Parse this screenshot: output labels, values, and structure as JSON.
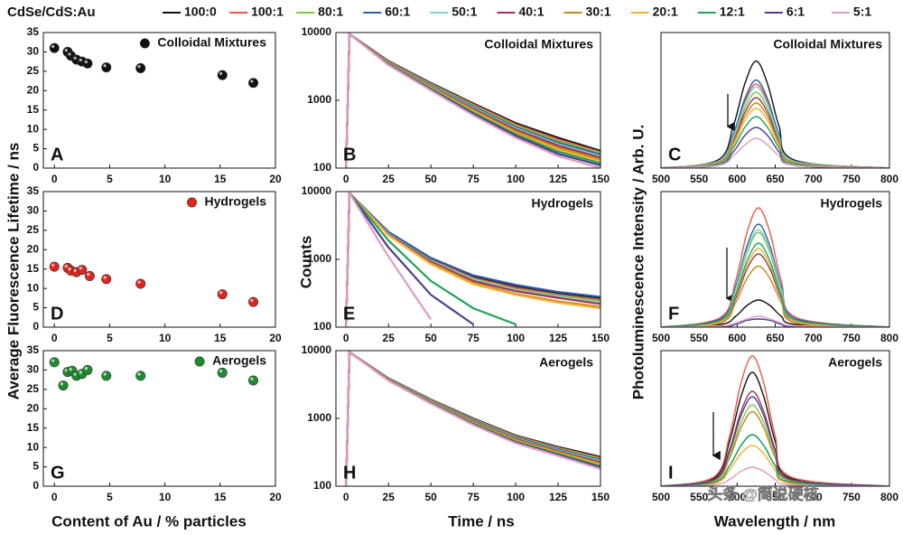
{
  "legend": {
    "title": "CdSe/CdS:Au",
    "entries": [
      {
        "name": "100:0",
        "color": "#111111"
      },
      {
        "name": "100:1",
        "color": "#e8584a"
      },
      {
        "name": "80:1",
        "color": "#7ac943"
      },
      {
        "name": "60:1",
        "color": "#2a5caa"
      },
      {
        "name": "50:1",
        "color": "#7fd3d8"
      },
      {
        "name": "40:1",
        "color": "#a0344e"
      },
      {
        "name": "30:1",
        "color": "#c8861e"
      },
      {
        "name": "20:1",
        "color": "#f2b134"
      },
      {
        "name": "12:1",
        "color": "#1fa35a"
      },
      {
        "name": "6:1",
        "color": "#4b3f8f"
      },
      {
        "name": "5:1",
        "color": "#e19ac2"
      }
    ]
  },
  "axis_labels": {
    "lifetime_y": "Average Fluorescence Lifetime / ns",
    "counts_y": "Counts",
    "pl_y": "Photoluminescence Intensity / Arb. U.",
    "lifetime_x": "Content of Au / % particles",
    "counts_x": "Time / ns",
    "pl_x": "Wavelength / nm"
  },
  "watermark": "头条 @简说硬核",
  "chart_data": [
    {
      "type": "scatter",
      "panel_label": "A",
      "xlim": [
        -1,
        20
      ],
      "ylim": [
        0,
        35
      ],
      "xticks": [
        0,
        5,
        10,
        15,
        20
      ],
      "yticks": [
        0,
        5,
        10,
        15,
        20,
        25,
        30,
        35
      ],
      "x": [
        0,
        1.2,
        1.5,
        2,
        2.5,
        3,
        4.7,
        7.8,
        15.2,
        18
      ],
      "series": [
        {
          "name": "Colloidal Mixtures",
          "color": "#111111",
          "values": [
            31,
            30,
            29,
            28,
            27.5,
            27,
            26,
            25.8,
            24,
            22
          ]
        }
      ]
    },
    {
      "type": "line",
      "panel_label": "B",
      "annotation": "Colloidal Mixtures",
      "ylog": true,
      "xlim": [
        -6,
        150
      ],
      "ylim": [
        100,
        10000
      ],
      "xticks": [
        0,
        25,
        50,
        75,
        100,
        125,
        150
      ],
      "yticks": [
        100,
        1000,
        10000
      ],
      "x": [
        0,
        2,
        25,
        50,
        75,
        100,
        125,
        150
      ],
      "series": [
        {
          "values": [
            100,
            9500,
            3800,
            1800,
            900,
            460,
            280,
            180
          ]
        },
        {
          "values": [
            100,
            9500,
            3750,
            1760,
            870,
            440,
            265,
            172
          ]
        },
        {
          "values": [
            100,
            9500,
            3700,
            1720,
            840,
            420,
            250,
            165
          ]
        },
        {
          "values": [
            100,
            9500,
            3650,
            1680,
            810,
            400,
            237,
            158
          ]
        },
        {
          "values": [
            100,
            9500,
            3600,
            1640,
            780,
            385,
            225,
            150
          ]
        },
        {
          "values": [
            100,
            9500,
            3550,
            1600,
            750,
            370,
            215,
            143
          ]
        },
        {
          "values": [
            100,
            9500,
            3500,
            1560,
            720,
            350,
            200,
            135
          ]
        },
        {
          "values": [
            100,
            9500,
            3450,
            1520,
            690,
            330,
            188,
            127
          ]
        },
        {
          "values": [
            100,
            9500,
            3400,
            1480,
            660,
            315,
            175,
            118
          ]
        },
        {
          "values": [
            100,
            9500,
            3350,
            1440,
            630,
            300,
            162,
            110
          ]
        },
        {
          "values": [
            100,
            9500,
            3300,
            1400,
            600,
            280,
            150,
            100
          ]
        }
      ]
    },
    {
      "type": "line",
      "panel_label": "C",
      "annotation": "Colloidal Mixtures",
      "xlim": [
        500,
        800
      ],
      "ylim": [
        0,
        100
      ],
      "xticks": [
        500,
        550,
        600,
        650,
        700,
        750,
        800
      ],
      "x": [
        500,
        575,
        595,
        610,
        625,
        640,
        655,
        675,
        800
      ],
      "series": [
        {
          "values": [
            0,
            6,
            31,
            62,
            79,
            62,
            31,
            6,
            0
          ]
        },
        {
          "values": [
            0,
            5,
            24,
            49,
            62,
            49,
            24,
            5,
            0
          ]
        },
        {
          "values": [
            0,
            4,
            22,
            44,
            56,
            44,
            22,
            4,
            0
          ]
        },
        {
          "values": [
            0,
            5,
            25,
            51,
            65,
            51,
            25,
            5,
            0
          ]
        },
        {
          "values": [
            0,
            5,
            23,
            47,
            60,
            47,
            23,
            5,
            0
          ]
        },
        {
          "values": [
            0,
            4,
            20,
            41,
            52,
            41,
            20,
            4,
            0
          ]
        },
        {
          "values": [
            0,
            4,
            19,
            38,
            48,
            38,
            19,
            4,
            0
          ]
        },
        {
          "values": [
            0,
            3,
            17,
            35,
            44,
            35,
            17,
            3,
            0
          ]
        },
        {
          "values": [
            0,
            3,
            15,
            30,
            38,
            30,
            15,
            3,
            0
          ]
        },
        {
          "values": [
            0,
            2,
            12,
            24,
            30,
            24,
            12,
            2,
            0
          ]
        },
        {
          "values": [
            0,
            2,
            9,
            17,
            22,
            17,
            9,
            2,
            0
          ]
        }
      ]
    },
    {
      "type": "scatter",
      "panel_label": "D",
      "xlim": [
        -1,
        20
      ],
      "ylim": [
        0,
        35
      ],
      "xticks": [
        0,
        5,
        10,
        15,
        20
      ],
      "yticks": [
        0,
        5,
        10,
        15,
        20,
        25,
        30,
        35
      ],
      "x": [
        0,
        1.2,
        1.5,
        2,
        2.5,
        3.2,
        4.7,
        7.8,
        15.2,
        18
      ],
      "series": [
        {
          "name": "Hydrogels",
          "color": "#e0251b",
          "values": [
            15.6,
            15.3,
            14.6,
            14.2,
            14.8,
            13.2,
            12.4,
            11.2,
            8.5,
            6.5
          ]
        }
      ]
    },
    {
      "type": "line",
      "panel_label": "E",
      "annotation": "Hydrogels",
      "ylog": true,
      "xlim": [
        -6,
        150
      ],
      "ylim": [
        100,
        10000
      ],
      "xticks": [
        0,
        25,
        50,
        75,
        100,
        125,
        150
      ],
      "yticks": [
        100,
        1000,
        10000
      ],
      "x": [
        0,
        2,
        25,
        50,
        75,
        100,
        125,
        150
      ],
      "series": [
        {
          "values": [
            100,
            9500,
            2500,
            1000,
            550,
            400,
            320,
            270
          ]
        },
        {
          "values": [
            100,
            9500,
            2450,
            980,
            530,
            380,
            300,
            250
          ]
        },
        {
          "values": [
            100,
            9500,
            2400,
            950,
            510,
            360,
            290,
            240
          ]
        },
        {
          "values": [
            100,
            9500,
            2550,
            1050,
            580,
            420,
            330,
            280
          ]
        },
        {
          "values": [
            100,
            9500,
            2400,
            940,
            500,
            350,
            280,
            230
          ]
        },
        {
          "values": [
            100,
            9500,
            2350,
            920,
            480,
            340,
            270,
            220
          ]
        },
        {
          "values": [
            100,
            9500,
            2300,
            880,
            450,
            310,
            240,
            200
          ]
        },
        {
          "values": [
            100,
            9500,
            2250,
            850,
            430,
            300,
            230,
            190
          ]
        },
        {
          "values": [
            100,
            9500,
            1900,
            480,
            190,
            110,
            null,
            null
          ]
        },
        {
          "values": [
            100,
            9500,
            1500,
            300,
            110,
            null,
            null,
            null
          ]
        },
        {
          "values": [
            100,
            9500,
            1100,
            130,
            null,
            null,
            null,
            null
          ]
        }
      ]
    },
    {
      "type": "line",
      "panel_label": "F",
      "annotation": "Hydrogels",
      "xlim": [
        500,
        800
      ],
      "ylim": [
        0,
        100
      ],
      "xticks": [
        500,
        550,
        600,
        650,
        700,
        750,
        800
      ],
      "x": [
        500,
        578,
        598,
        613,
        628,
        643,
        658,
        678,
        800
      ],
      "series": [
        {
          "values": [
            0,
            2,
            8,
            16,
            20,
            16,
            8,
            2,
            0
          ]
        },
        {
          "values": [
            0,
            7,
            34,
            70,
            88,
            70,
            34,
            7,
            0
          ]
        },
        {
          "values": [
            0,
            5,
            27,
            55,
            70,
            55,
            27,
            5,
            0
          ]
        },
        {
          "values": [
            0,
            6,
            30,
            60,
            76,
            60,
            30,
            6,
            0
          ]
        },
        {
          "values": [
            0,
            5,
            28,
            57,
            72,
            57,
            28,
            5,
            0
          ]
        },
        {
          "values": [
            0,
            4,
            21,
            43,
            54,
            43,
            21,
            4,
            0
          ]
        },
        {
          "values": [
            0,
            3,
            18,
            36,
            45,
            36,
            18,
            3,
            0
          ]
        },
        {
          "values": [
            0,
            4,
            23,
            46,
            58,
            46,
            23,
            4,
            0
          ]
        },
        {
          "values": [
            0,
            5,
            24,
            49,
            62,
            49,
            24,
            5,
            0
          ]
        },
        {
          "values": [
            0,
            0,
            2,
            5,
            6,
            5,
            2,
            0,
            0
          ]
        },
        {
          "values": [
            0,
            1,
            3,
            6,
            8,
            6,
            3,
            1,
            0
          ]
        }
      ]
    },
    {
      "type": "scatter",
      "panel_label": "G",
      "xlim": [
        -1,
        20
      ],
      "ylim": [
        0,
        35
      ],
      "xticks": [
        0,
        5,
        10,
        15,
        20
      ],
      "yticks": [
        0,
        5,
        10,
        15,
        20,
        25,
        30,
        35
      ],
      "x": [
        0,
        0.8,
        1.2,
        1.6,
        2,
        2.5,
        3,
        4.7,
        7.8,
        15.2,
        18
      ],
      "series": [
        {
          "name": "Aerogels",
          "color": "#1e8c2e",
          "values": [
            32,
            26,
            29.5,
            29.8,
            28.5,
            29,
            30,
            28.5,
            28.5,
            29.3,
            27.3
          ]
        }
      ]
    },
    {
      "type": "line",
      "panel_label": "H",
      "annotation": "Aerogels",
      "ylog": true,
      "xlim": [
        -6,
        150
      ],
      "ylim": [
        100,
        10000
      ],
      "xticks": [
        0,
        25,
        50,
        75,
        100,
        125,
        150
      ],
      "yticks": [
        100,
        1000,
        10000
      ],
      "x": [
        0,
        2,
        25,
        50,
        75,
        100,
        125,
        150
      ],
      "series": [
        {
          "values": [
            100,
            9500,
            3900,
            1900,
            1000,
            560,
            380,
            270
          ]
        },
        {
          "values": [
            100,
            9500,
            3870,
            1875,
            980,
            547,
            370,
            261
          ]
        },
        {
          "values": [
            100,
            9500,
            3840,
            1850,
            960,
            534,
            360,
            252
          ]
        },
        {
          "values": [
            100,
            9500,
            3810,
            1825,
            940,
            521,
            350,
            243
          ]
        },
        {
          "values": [
            100,
            9500,
            3780,
            1800,
            920,
            508,
            340,
            234
          ]
        },
        {
          "values": [
            100,
            9500,
            3750,
            1775,
            900,
            495,
            330,
            225
          ]
        },
        {
          "values": [
            100,
            9500,
            3720,
            1750,
            880,
            482,
            320,
            216
          ]
        },
        {
          "values": [
            100,
            9500,
            3690,
            1725,
            860,
            469,
            310,
            207
          ]
        },
        {
          "values": [
            100,
            9500,
            3660,
            1700,
            840,
            456,
            300,
            198
          ]
        },
        {
          "values": [
            100,
            9500,
            3630,
            1675,
            820,
            443,
            290,
            189
          ]
        },
        {
          "values": [
            100,
            9500,
            3600,
            1650,
            800,
            430,
            280,
            180
          ]
        }
      ]
    },
    {
      "type": "line",
      "panel_label": "I",
      "annotation": "Aerogels",
      "xlim": [
        500,
        800
      ],
      "ylim": [
        0,
        100
      ],
      "xticks": [
        500,
        550,
        600,
        650,
        700,
        750,
        800
      ],
      "x": [
        500,
        570,
        590,
        605,
        620,
        635,
        650,
        670,
        800
      ],
      "series": [
        {
          "values": [
            0,
            6,
            33,
            66,
            84,
            66,
            33,
            6,
            0
          ]
        },
        {
          "values": [
            0,
            7,
            37,
            76,
            96,
            76,
            37,
            7,
            0
          ]
        },
        {
          "values": [
            0,
            5,
            23,
            47,
            60,
            47,
            23,
            5,
            0
          ]
        },
        {
          "values": [
            0,
            3,
            15,
            30,
            38,
            30,
            15,
            3,
            0
          ]
        },
        {
          "values": [
            0,
            4,
            21,
            43,
            55,
            43,
            21,
            4,
            0
          ]
        },
        {
          "values": [
            0,
            5,
            27,
            55,
            70,
            55,
            27,
            5,
            0
          ]
        },
        {
          "values": [
            0,
            4,
            21,
            43,
            55,
            43,
            21,
            4,
            0
          ]
        },
        {
          "values": [
            0,
            2,
            12,
            24,
            30,
            24,
            12,
            2,
            0
          ]
        },
        {
          "values": [
            0,
            3,
            15,
            30,
            38,
            30,
            15,
            3,
            0
          ]
        },
        {
          "values": [
            0,
            5,
            26,
            52,
            66,
            52,
            26,
            5,
            0
          ]
        },
        {
          "values": [
            0,
            1,
            5,
            11,
            14,
            11,
            5,
            1,
            0
          ]
        }
      ]
    }
  ]
}
